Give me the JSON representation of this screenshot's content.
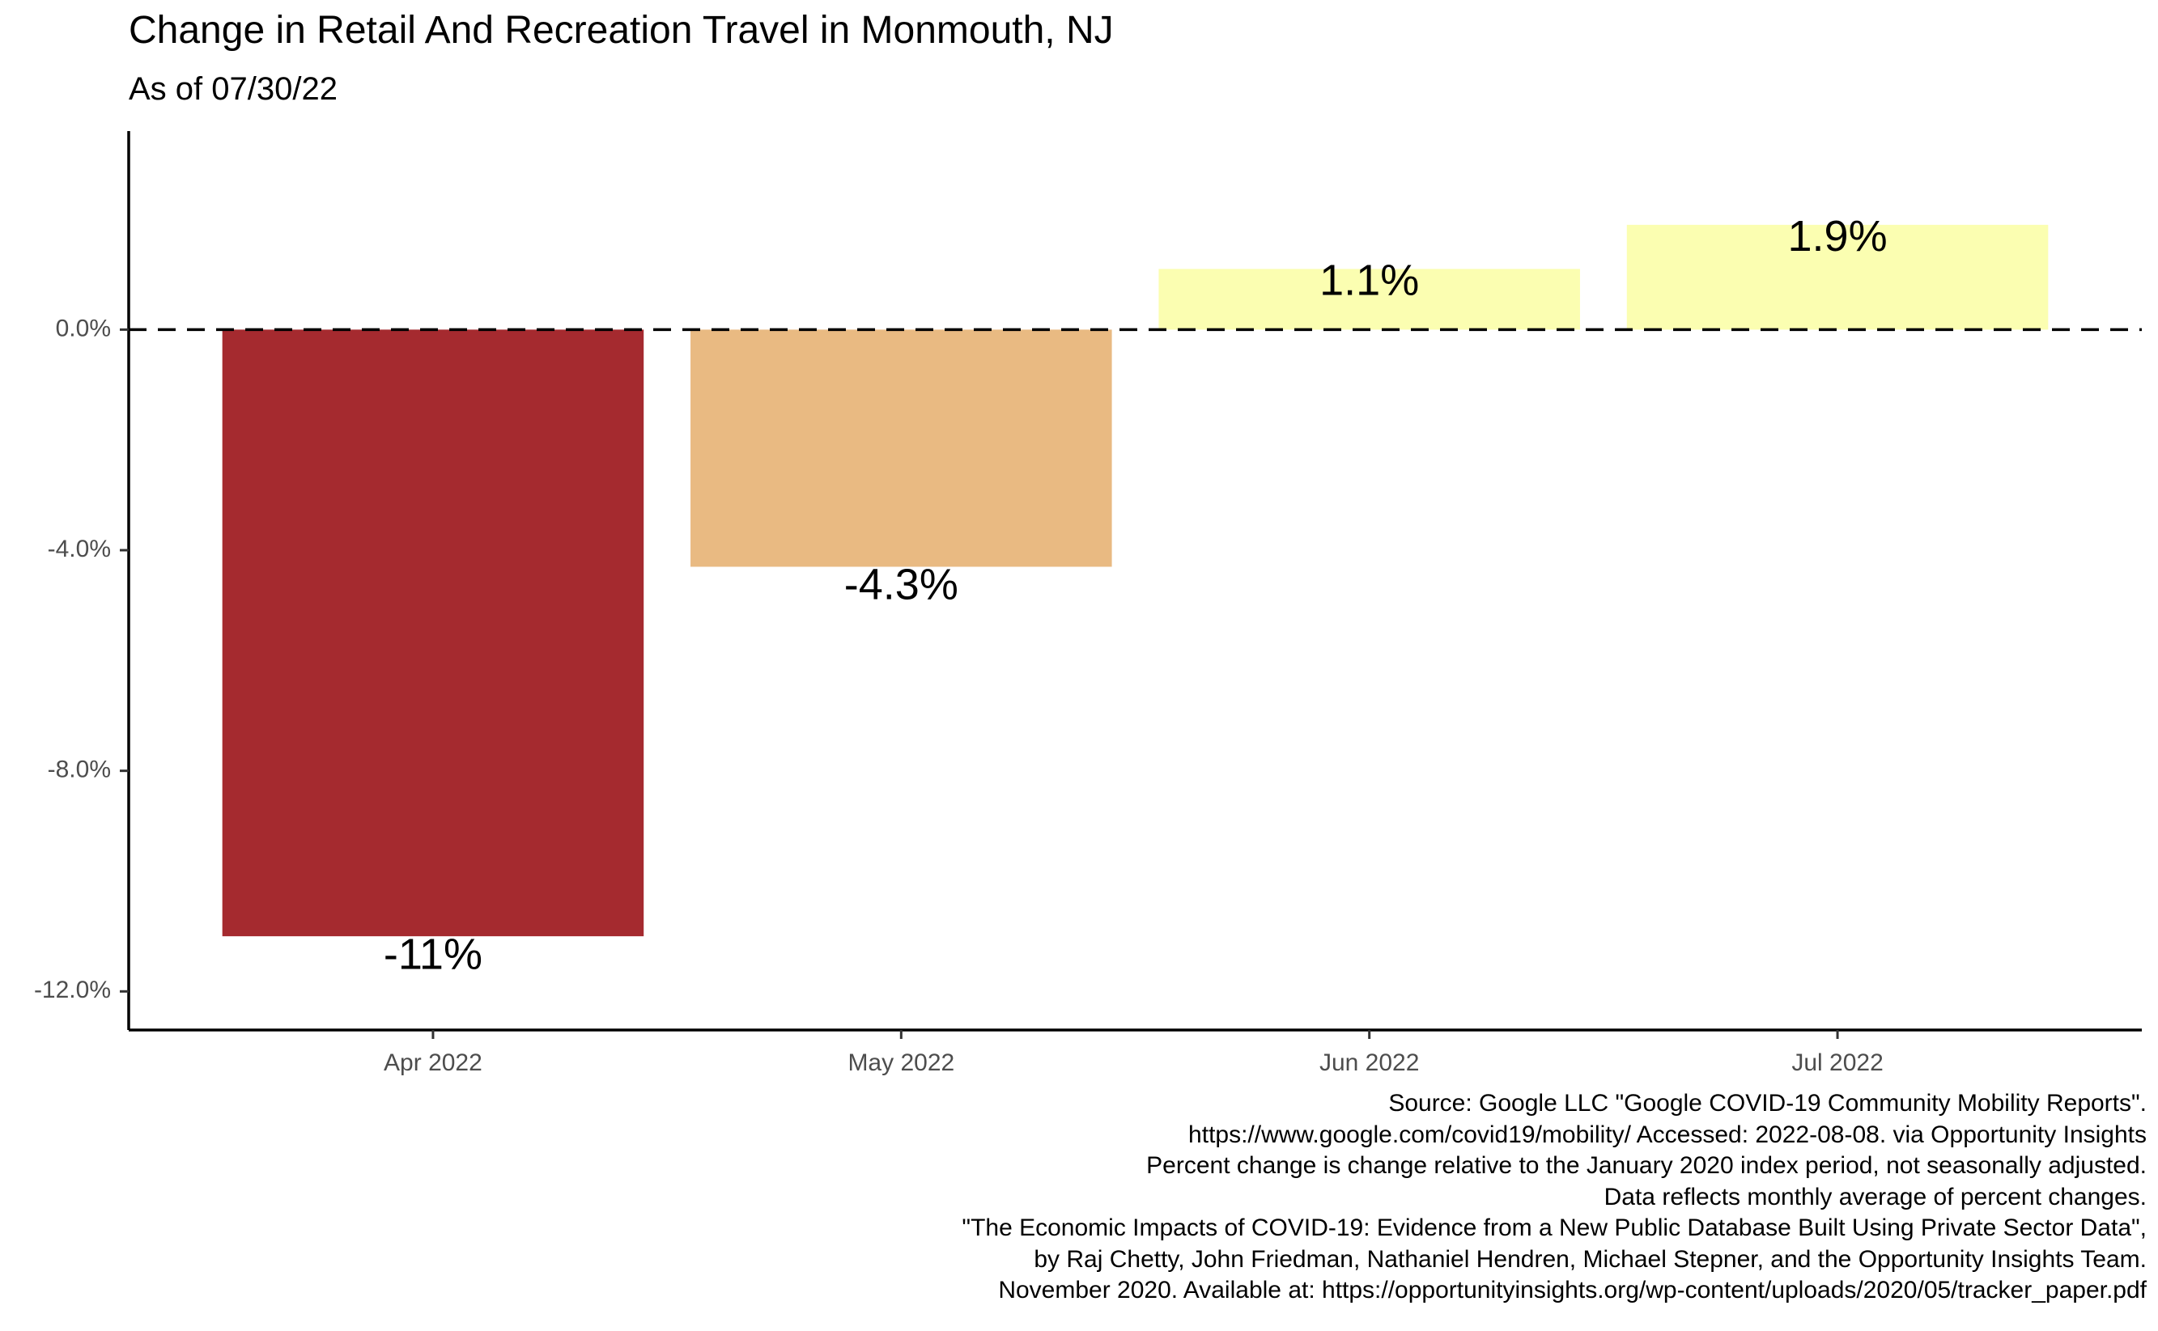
{
  "chart_data": {
    "type": "bar",
    "title": "Change in Retail And Recreation Travel in Monmouth, NJ",
    "subtitle": "As of 07/30/22",
    "categories": [
      "Apr 2022",
      "May 2022",
      "Jun 2022",
      "Jul 2022"
    ],
    "values": [
      -11.0,
      -4.3,
      1.1,
      1.9
    ],
    "data_labels": [
      "-11%",
      "-4.3%",
      "1.1%",
      "1.9%"
    ],
    "bar_colors": [
      "#a52a2f",
      "#e9ba82",
      "#fbfeb1",
      "#fbfeb1"
    ],
    "xlabel": "",
    "ylabel": "",
    "ylim": [
      -12.7,
      3.6
    ],
    "y_ticks": [
      0,
      -4,
      -8,
      -12
    ],
    "y_tick_labels": [
      "0.0%",
      "-4.0%",
      "-8.0%",
      "-12.0%"
    ],
    "reference_line": {
      "value": 0,
      "style": "dashed"
    },
    "grid": false,
    "legend": "none"
  },
  "caption": [
    "Source: Google LLC \"Google COVID-19 Community Mobility Reports\".",
    "https://www.google.com/covid19/mobility/ Accessed: 2022-08-08. via Opportunity Insights",
    "Percent change is change relative to the January 2020 index period, not seasonally adjusted.",
    "Data reflects monthly average of percent changes.",
    "\"The Economic Impacts of COVID-19: Evidence from a New Public Database Built Using Private Sector Data\",",
    "by Raj Chetty, John Friedman, Nathaniel Hendren, Michael Stepner, and the Opportunity Insights Team.",
    "November 2020. Available at: https://opportunityinsights.org/wp-content/uploads/2020/05/tracker_paper.pdf"
  ]
}
